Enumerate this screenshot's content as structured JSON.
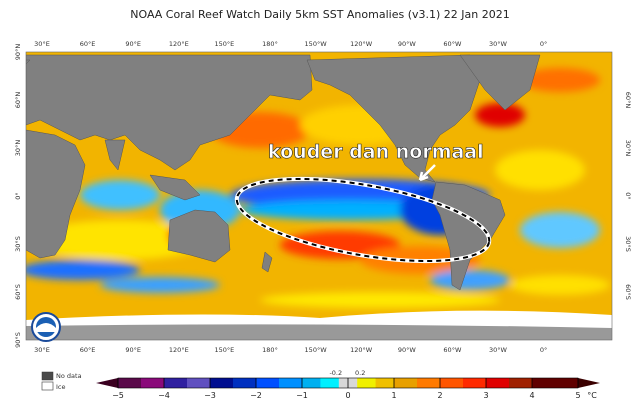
{
  "title": "NOAA Coral Reef Watch Daily 5km SST Anomalies  (v3.1)   22 Jan 2021",
  "map": {
    "top_lon_labels": [
      "30°E",
      "60°E",
      "90°E",
      "120°E",
      "150°E",
      "180°",
      "150°W",
      "120°W",
      "90°W",
      "60°W",
      "30°W",
      "0°"
    ],
    "bottom_lon_labels": [
      "30°E",
      "60°E",
      "90°E",
      "120°E",
      "150°E",
      "180°",
      "150°W",
      "120°W",
      "90°W",
      "60°W",
      "30°W",
      "0°"
    ],
    "left_lat_labels": [
      "90°N",
      "60°N",
      "30°N",
      "0°",
      "30°S",
      "60°S",
      "90°S"
    ],
    "right_lat_labels": [
      "60°N",
      "30°N",
      "0°",
      "30°S",
      "60°S"
    ],
    "annotation": "kouder dan normaal",
    "logo": "NOAA"
  },
  "legend": {
    "no_data": "No data",
    "ice": "Ice",
    "ticks": [
      "−5",
      "−4",
      "−3",
      "−2",
      "−1",
      "0",
      "1",
      "2",
      "3",
      "4",
      "5"
    ],
    "minor_ticks": [
      "-0.2",
      "0.2"
    ],
    "unit": "°C",
    "colors": [
      "#5a0a4a",
      "#8a0a7a",
      "#3020a0",
      "#6050c0",
      "#000e90",
      "#0030c0",
      "#0050ff",
      "#0090ff",
      "#00b0f0",
      "#00f0ff",
      "#d8d8d8",
      "#f0f000",
      "#f0c000",
      "#e8a000",
      "#ff7a00",
      "#ff5500",
      "#ff2a00",
      "#e00000",
      "#a02000",
      "#600000"
    ]
  }
}
